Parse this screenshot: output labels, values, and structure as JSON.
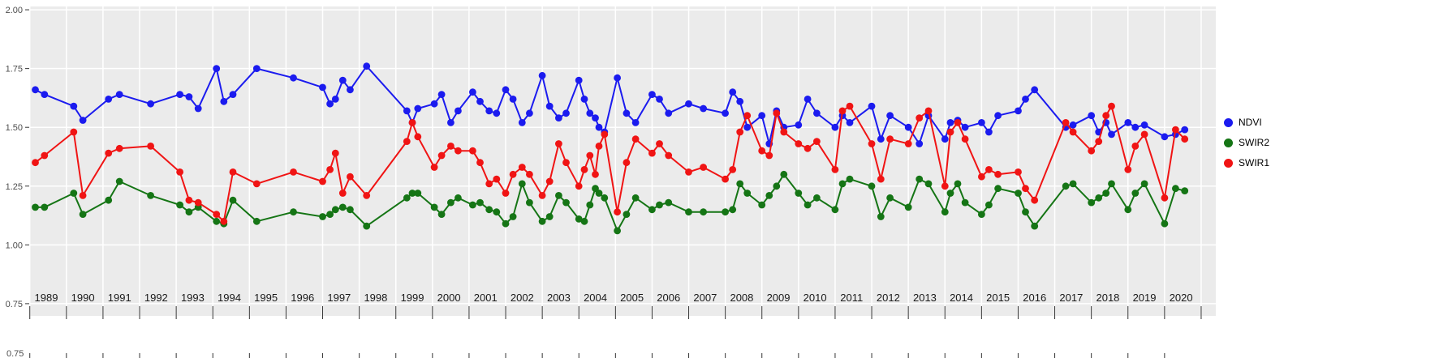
{
  "legend": {
    "items": [
      {
        "label": "NDVI"
      },
      {
        "label": "SWIR2"
      },
      {
        "label": "SWIR1"
      }
    ]
  },
  "chart_data": {
    "type": "line",
    "title": "",
    "xlabel": "",
    "ylabel": "",
    "grid": true,
    "legend_position": "right",
    "panel_bg": "#ebebeb",
    "grid_color": "#ffffff",
    "tick_color": "#333333",
    "x_label_color": "#1a1a1a",
    "y_label_color": "#4d4d4d",
    "ylim": [
      0.698,
      2.014
    ],
    "y_ticks": [
      2.0,
      1.75,
      1.5,
      1.25,
      1.0,
      0.75
    ],
    "y_tick_labels": [
      "2.00",
      "1.75",
      "1.50",
      "1.25",
      "1.00",
      "0.75"
    ],
    "bottom_axis_extra_label": "0.75",
    "x_tick_labels": [
      "1989",
      "1990",
      "1991",
      "1992",
      "1993",
      "1994",
      "1995",
      "1996",
      "1997",
      "1998",
      "1999",
      "2000",
      "2001",
      "2002",
      "2003",
      "2004",
      "2005",
      "2006",
      "2007",
      "2008",
      "2009",
      "2010",
      "2011",
      "2012",
      "2013",
      "2014",
      "2015",
      "2016",
      "2017",
      "2018",
      "2019",
      "2020"
    ],
    "x_years": [
      1989,
      1990,
      1991,
      1992,
      1993,
      1994,
      1995,
      1996,
      1997,
      1998,
      1999,
      2000,
      2001,
      2002,
      2003,
      2004,
      2005,
      2006,
      2007,
      2008,
      2009,
      2010,
      2011,
      2012,
      2013,
      2014,
      2015,
      2016,
      2017,
      2018,
      2019,
      2020
    ],
    "x": [
      1989.15,
      1989.4,
      1990.2,
      1990.45,
      1991.15,
      1991.45,
      1992.3,
      1993.1,
      1993.35,
      1993.6,
      1994.1,
      1994.3,
      1994.55,
      1995.2,
      1996.2,
      1997.0,
      1997.2,
      1997.35,
      1997.55,
      1997.75,
      1998.2,
      1999.3,
      1999.45,
      1999.6,
      2000.05,
      2000.25,
      2000.5,
      2000.7,
      2001.1,
      2001.3,
      2001.55,
      2001.75,
      2002.0,
      2002.2,
      2002.45,
      2002.65,
      2003.0,
      2003.2,
      2003.45,
      2003.65,
      2004.0,
      2004.15,
      2004.3,
      2004.45,
      2004.55,
      2004.7,
      2005.05,
      2005.3,
      2005.55,
      2006.0,
      2006.2,
      2006.45,
      2007.0,
      2007.4,
      2008.0,
      2008.2,
      2008.4,
      2008.6,
      2009.0,
      2009.2,
      2009.4,
      2009.6,
      2010.0,
      2010.25,
      2010.5,
      2011.0,
      2011.2,
      2011.4,
      2012.0,
      2012.25,
      2012.5,
      2013.0,
      2013.3,
      2013.55,
      2014.0,
      2014.15,
      2014.35,
      2014.55,
      2015.0,
      2015.2,
      2015.45,
      2016.0,
      2016.2,
      2016.45,
      2017.3,
      2017.5,
      2018.0,
      2018.2,
      2018.4,
      2018.55,
      2019.0,
      2019.2,
      2019.45,
      2020.0,
      2020.3,
      2020.55
    ],
    "series": [
      {
        "name": "NDVI",
        "color": "#1b1bef",
        "values": [
          1.66,
          1.64,
          1.59,
          1.53,
          1.62,
          1.64,
          1.6,
          1.64,
          1.63,
          1.58,
          1.75,
          1.61,
          1.64,
          1.75,
          1.71,
          1.67,
          1.6,
          1.62,
          1.7,
          1.66,
          1.76,
          1.57,
          1.52,
          1.58,
          1.6,
          1.64,
          1.52,
          1.57,
          1.65,
          1.61,
          1.57,
          1.56,
          1.66,
          1.62,
          1.52,
          1.56,
          1.72,
          1.59,
          1.54,
          1.56,
          1.7,
          1.62,
          1.56,
          1.54,
          1.5,
          1.48,
          1.71,
          1.56,
          1.52,
          1.64,
          1.62,
          1.56,
          1.6,
          1.58,
          1.56,
          1.65,
          1.61,
          1.5,
          1.55,
          1.43,
          1.57,
          1.5,
          1.51,
          1.62,
          1.56,
          1.5,
          1.55,
          1.52,
          1.59,
          1.45,
          1.55,
          1.5,
          1.43,
          1.55,
          1.45,
          1.52,
          1.53,
          1.5,
          1.52,
          1.48,
          1.55,
          1.57,
          1.62,
          1.66,
          1.5,
          1.51,
          1.55,
          1.48,
          1.52,
          1.47,
          1.52,
          1.5,
          1.51,
          1.46,
          1.47,
          1.49
        ]
      },
      {
        "name": "SWIR2",
        "color": "#157515",
        "values": [
          1.16,
          1.16,
          1.22,
          1.13,
          1.19,
          1.27,
          1.21,
          1.17,
          1.14,
          1.16,
          1.1,
          1.09,
          1.19,
          1.1,
          1.14,
          1.12,
          1.13,
          1.15,
          1.16,
          1.15,
          1.08,
          1.2,
          1.22,
          1.22,
          1.16,
          1.13,
          1.18,
          1.2,
          1.17,
          1.18,
          1.15,
          1.14,
          1.09,
          1.12,
          1.26,
          1.18,
          1.1,
          1.12,
          1.21,
          1.18,
          1.11,
          1.1,
          1.17,
          1.24,
          1.22,
          1.2,
          1.06,
          1.13,
          1.2,
          1.15,
          1.17,
          1.18,
          1.14,
          1.14,
          1.14,
          1.15,
          1.26,
          1.22,
          1.17,
          1.21,
          1.25,
          1.3,
          1.22,
          1.17,
          1.2,
          1.15,
          1.26,
          1.28,
          1.25,
          1.12,
          1.2,
          1.16,
          1.28,
          1.26,
          1.14,
          1.22,
          1.26,
          1.18,
          1.13,
          1.17,
          1.24,
          1.22,
          1.14,
          1.08,
          1.25,
          1.26,
          1.18,
          1.2,
          1.22,
          1.26,
          1.15,
          1.22,
          1.26,
          1.09,
          1.24,
          1.23
        ]
      },
      {
        "name": "SWIR1",
        "color": "#f01414",
        "values": [
          1.35,
          1.38,
          1.48,
          1.21,
          1.39,
          1.41,
          1.42,
          1.31,
          1.19,
          1.18,
          1.13,
          1.1,
          1.31,
          1.26,
          1.31,
          1.27,
          1.32,
          1.39,
          1.22,
          1.29,
          1.21,
          1.44,
          1.52,
          1.46,
          1.33,
          1.38,
          1.42,
          1.4,
          1.4,
          1.35,
          1.26,
          1.28,
          1.22,
          1.3,
          1.33,
          1.3,
          1.21,
          1.27,
          1.43,
          1.35,
          1.25,
          1.32,
          1.38,
          1.3,
          1.42,
          1.47,
          1.14,
          1.35,
          1.45,
          1.39,
          1.43,
          1.38,
          1.31,
          1.33,
          1.28,
          1.32,
          1.48,
          1.55,
          1.4,
          1.38,
          1.56,
          1.48,
          1.43,
          1.41,
          1.44,
          1.32,
          1.57,
          1.59,
          1.43,
          1.28,
          1.45,
          1.43,
          1.54,
          1.57,
          1.25,
          1.48,
          1.52,
          1.45,
          1.29,
          1.32,
          1.3,
          1.31,
          1.24,
          1.19,
          1.52,
          1.48,
          1.4,
          1.44,
          1.55,
          1.59,
          1.32,
          1.42,
          1.47,
          1.2,
          1.49,
          1.45
        ]
      }
    ]
  }
}
